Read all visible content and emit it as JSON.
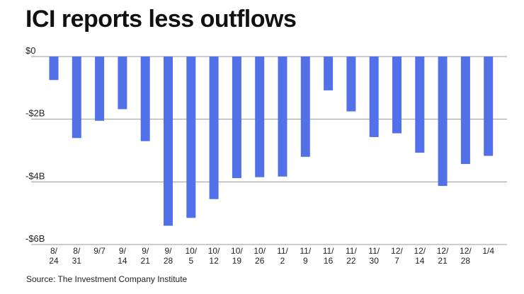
{
  "title": "ICI reports less outflows",
  "source": "Source: The Investment Company Institute",
  "colors": {
    "bar": "#5271e8",
    "grid": "#999999",
    "text": "#222222"
  },
  "chart_data": {
    "type": "bar",
    "title": "ICI reports less outflows",
    "xlabel": "",
    "ylabel": "",
    "ylim": [
      -6,
      0
    ],
    "yticks": [
      0,
      -2,
      -4,
      -6
    ],
    "ytick_labels": [
      "$0",
      "-$2B",
      "-$4B",
      "-$6B"
    ],
    "categories": [
      "8/24",
      "8/31",
      "9/7",
      "9/14",
      "9/21",
      "9/28",
      "10/5",
      "10/12",
      "10/19",
      "10/26",
      "11/2",
      "11/9",
      "11/16",
      "11/22",
      "11/30",
      "12/7",
      "12/14",
      "12/21",
      "12/28",
      "1/4"
    ],
    "tick_labels": [
      [
        "8/",
        "24"
      ],
      [
        "8/",
        "31"
      ],
      [
        "9/7"
      ],
      [
        "9/",
        "14"
      ],
      [
        "9/",
        "21"
      ],
      [
        "9/",
        "28"
      ],
      [
        "10/",
        "5"
      ],
      [
        "10/",
        "12"
      ],
      [
        "10/",
        "19"
      ],
      [
        "10/",
        "26"
      ],
      [
        "11/",
        "2"
      ],
      [
        "11/",
        "9"
      ],
      [
        "11/",
        "16"
      ],
      [
        "11/",
        "22"
      ],
      [
        "11/",
        "30"
      ],
      [
        "12/",
        "7"
      ],
      [
        "12/",
        "14"
      ],
      [
        "12/",
        "21"
      ],
      [
        "12/",
        "28"
      ],
      [
        "1/4"
      ]
    ],
    "values": [
      -0.75,
      -2.6,
      -2.05,
      -1.68,
      -2.7,
      -5.4,
      -5.15,
      -4.55,
      -3.88,
      -3.85,
      -3.83,
      -3.2,
      -1.08,
      -1.75,
      -2.57,
      -2.45,
      -3.07,
      -4.13,
      -3.43,
      -3.17
    ],
    "grid": true,
    "legend": "none"
  }
}
